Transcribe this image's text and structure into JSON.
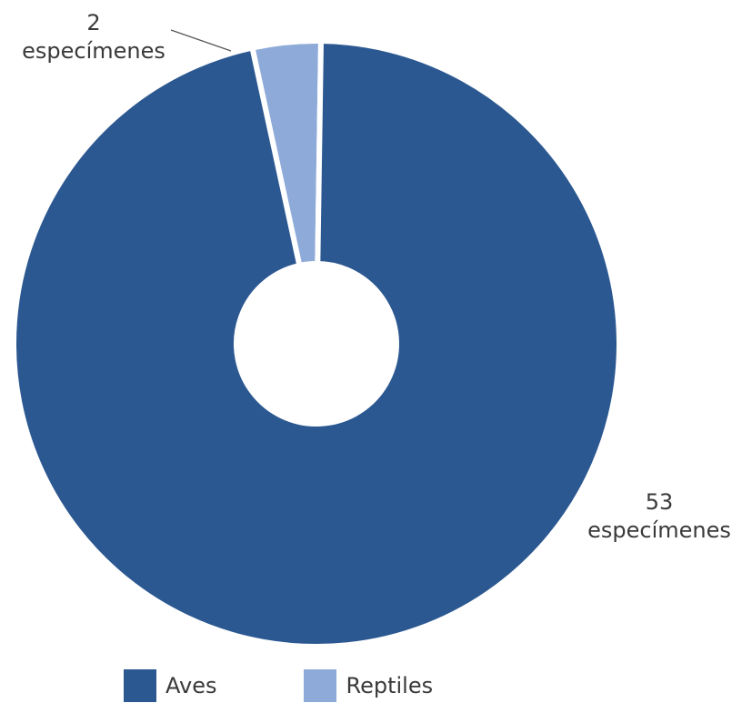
{
  "chart_data": {
    "type": "pie",
    "donut": true,
    "categories": [
      "Aves",
      "Reptiles"
    ],
    "values": [
      53,
      2
    ],
    "colors": [
      "#2c5891",
      "#8eaad9"
    ],
    "data_labels": [
      {
        "value": "53",
        "unit": "especímenes"
      },
      {
        "value": "2",
        "unit": "especímenes"
      }
    ],
    "legend": {
      "placement": "bottom",
      "items": [
        {
          "label": "Aves",
          "color": "#2c5891"
        },
        {
          "label": "Reptiles",
          "color": "#8eaad9"
        }
      ]
    }
  }
}
